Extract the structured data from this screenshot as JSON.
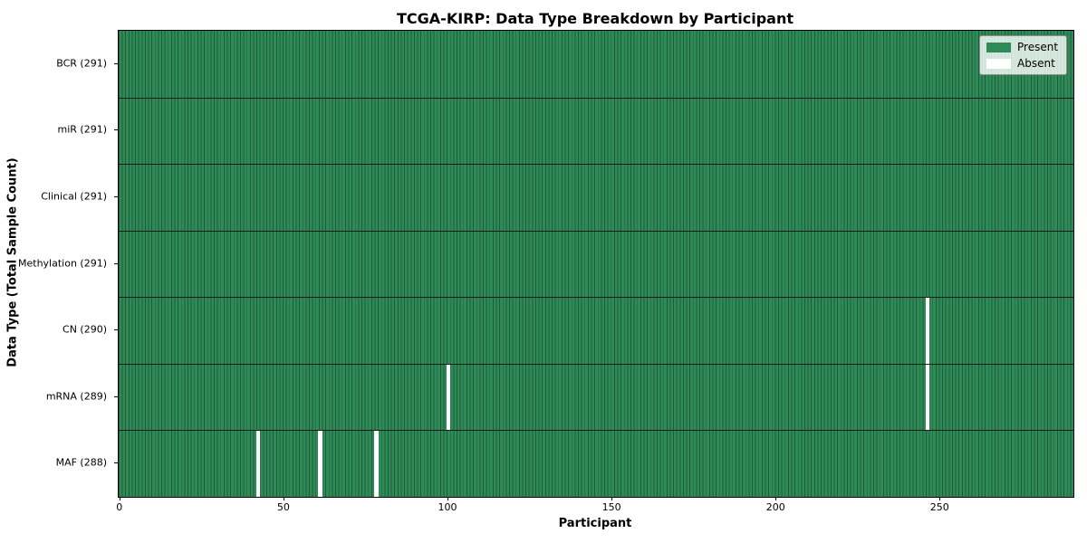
{
  "chart_data": {
    "type": "heatmap",
    "title": "TCGA-KIRP: Data Type Breakdown by Participant",
    "xlabel": "Participant",
    "ylabel": "Data Type (Total Sample Count)",
    "n_participants": 291,
    "x_ticks": [
      0,
      50,
      100,
      150,
      200,
      250
    ],
    "rows": [
      {
        "label": "BCR (291)",
        "data_type": "BCR",
        "total": 291,
        "absent_participants": []
      },
      {
        "label": "miR (291)",
        "data_type": "miR",
        "total": 291,
        "absent_participants": []
      },
      {
        "label": "Clinical (291)",
        "data_type": "Clinical",
        "total": 291,
        "absent_participants": []
      },
      {
        "label": "Methylation (291)",
        "data_type": "Methylation",
        "total": 291,
        "absent_participants": []
      },
      {
        "label": "CN (290)",
        "data_type": "CN",
        "total": 290,
        "absent_participants": [
          246
        ]
      },
      {
        "label": "mRNA (289)",
        "data_type": "mRNA",
        "total": 289,
        "absent_participants": [
          100,
          246
        ]
      },
      {
        "label": "MAF (288)",
        "data_type": "MAF",
        "total": 288,
        "absent_participants": [
          42,
          61,
          78
        ]
      }
    ],
    "legend": [
      {
        "label": "Present",
        "color": "#2e8b57"
      },
      {
        "label": "Absent",
        "color": "#ffffff"
      }
    ],
    "colors": {
      "present": "#2e8b57",
      "absent": "#ffffff",
      "cell_edge": "#1d5c38",
      "row_divider": "#1a1a1a",
      "background": "#ffffff"
    },
    "legend_position": "upper right",
    "grid": "row-dividers"
  }
}
